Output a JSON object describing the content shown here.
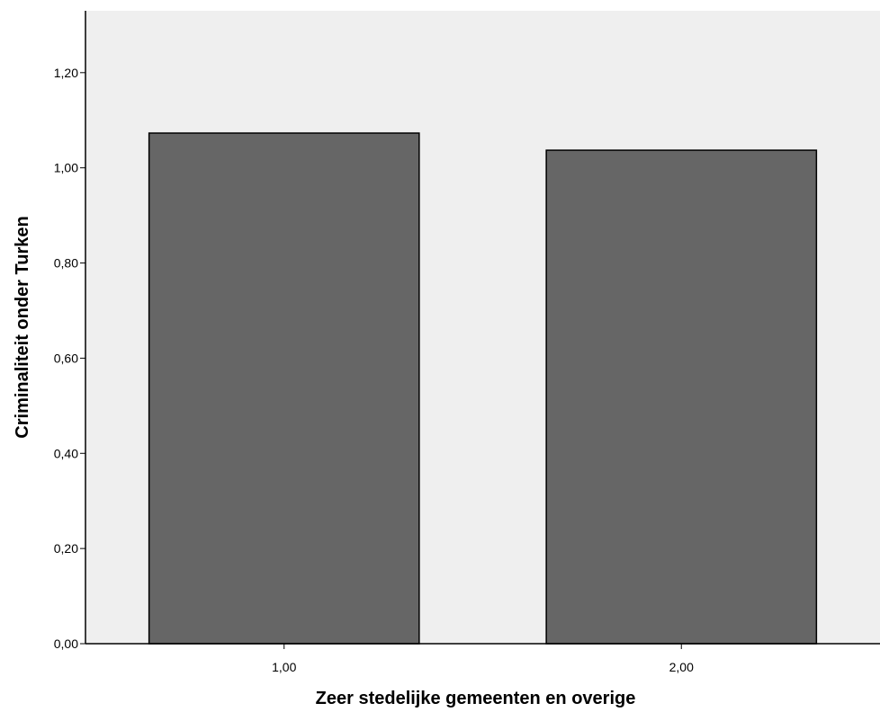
{
  "chart_data": {
    "type": "bar",
    "categories": [
      "1,00",
      "2,00"
    ],
    "values": [
      1.073,
      1.037
    ],
    "title": "",
    "xlabel": "Zeer stedelijke gemeenten en overige",
    "ylabel": "Criminaliteit onder Turken",
    "ylim": [
      0,
      1.33
    ],
    "yticks": [
      0.0,
      0.2,
      0.4,
      0.6,
      0.8,
      1.0,
      1.2
    ],
    "ytick_labels": [
      "0,00",
      "0,20",
      "0,40",
      "0,60",
      "0,80",
      "1,00",
      "1,20"
    ],
    "grid": false,
    "legend": "none",
    "colors": {
      "plot_background": "#efefef",
      "bar_fill": "#666666",
      "bar_stroke": "#000000",
      "axis": "#000000"
    }
  }
}
